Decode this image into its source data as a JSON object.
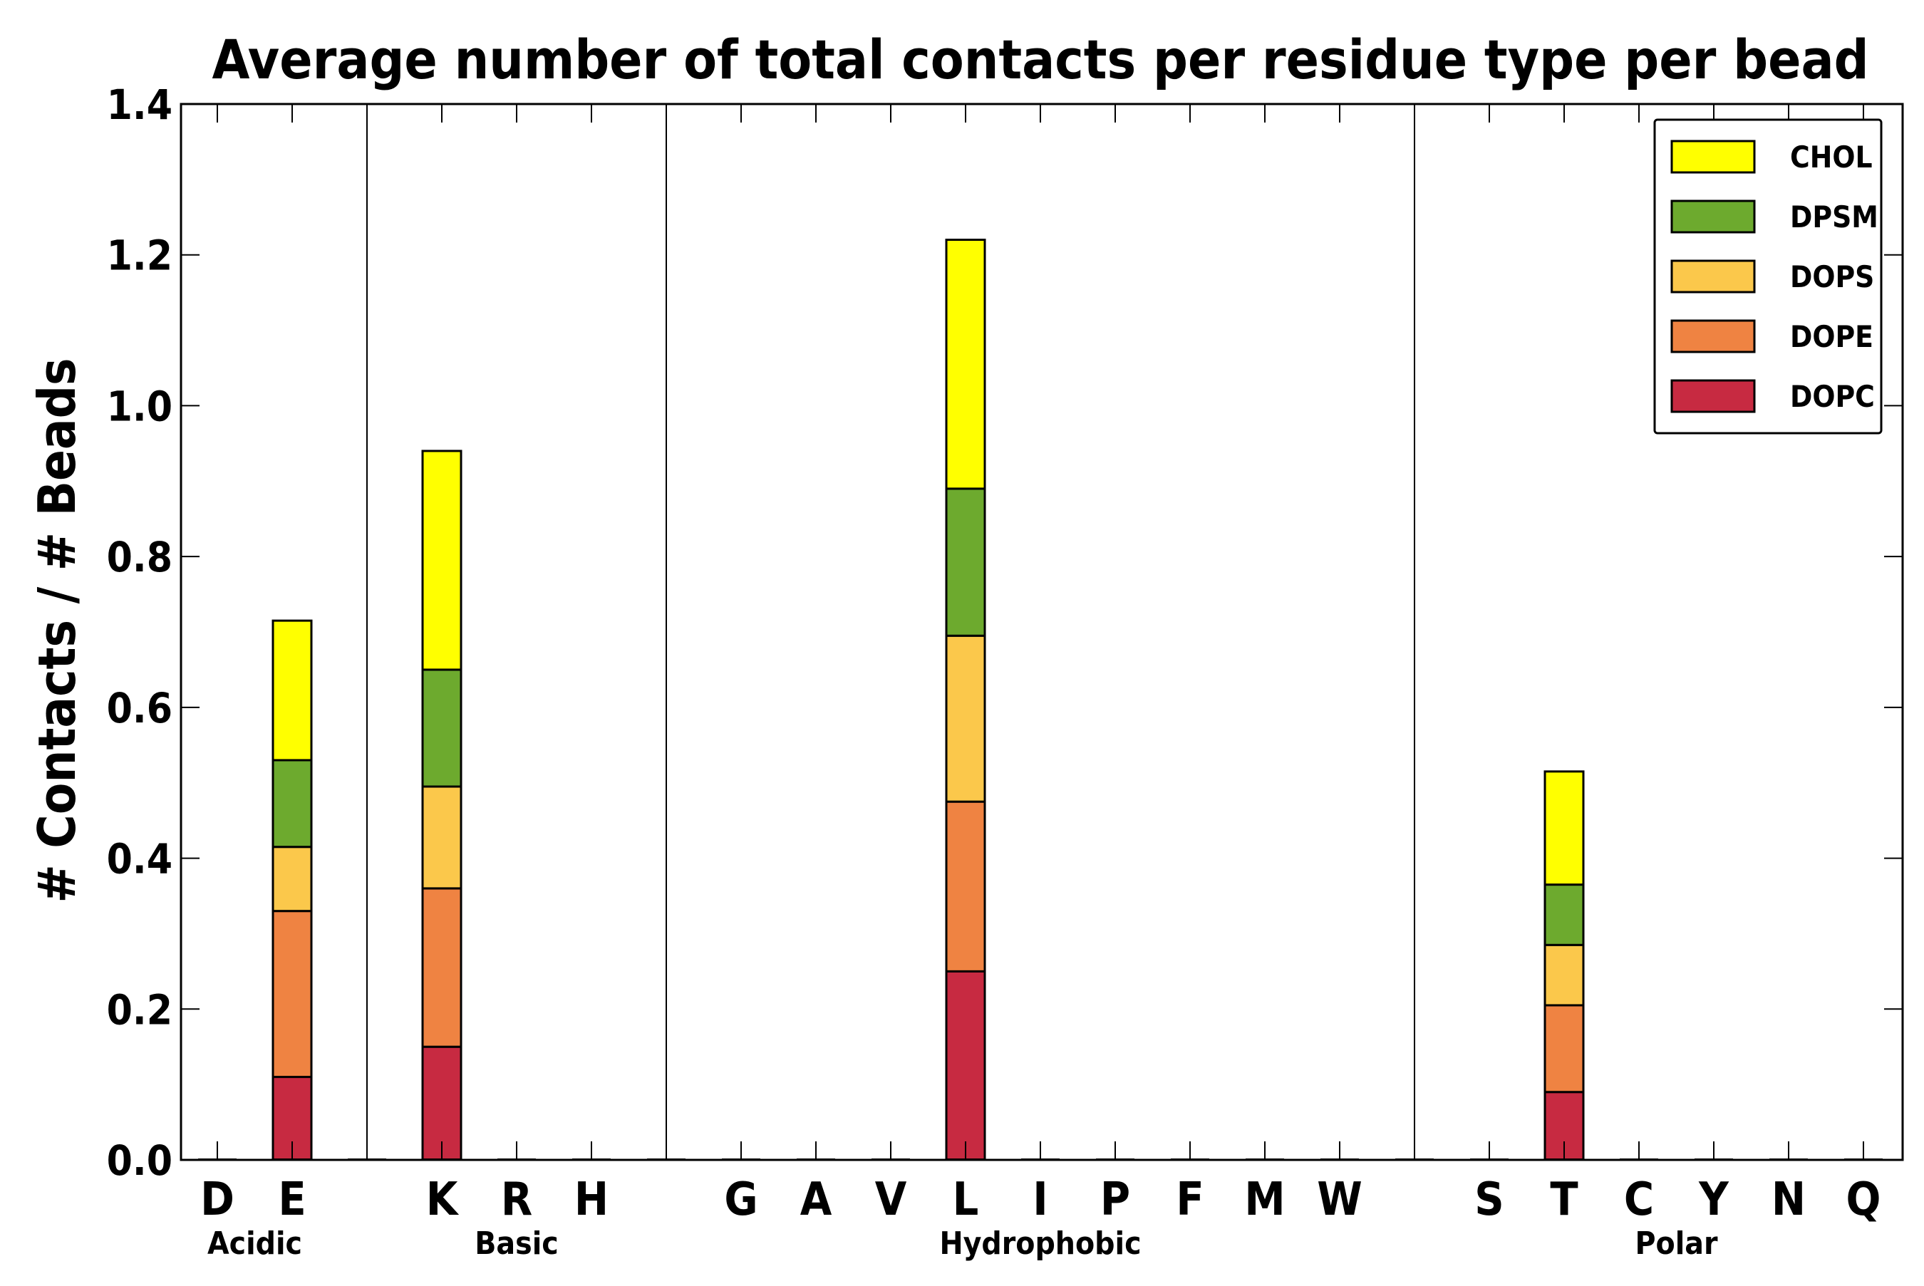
{
  "chart_data": {
    "type": "bar",
    "stacked": true,
    "title": "Average number of total contacts per residue type per bead",
    "xlabel": "",
    "ylabel": "# Contacts / # Beads",
    "ylim": [
      0.0,
      1.4
    ],
    "yticks": [
      "0.0",
      "0.2",
      "0.4",
      "0.6",
      "0.8",
      "1.0",
      "1.2",
      "1.4"
    ],
    "ytick_values": [
      0.0,
      0.2,
      0.4,
      0.6,
      0.8,
      1.0,
      1.2,
      1.4
    ],
    "grid": false,
    "legend_position": "top-right",
    "legend_order": [
      "CHOL",
      "DPSM",
      "DOPS",
      "DOPE",
      "DOPC"
    ],
    "categories": [
      "D",
      "E",
      "",
      "K",
      "R",
      "H",
      "",
      "G",
      "A",
      "V",
      "L",
      "I",
      "P",
      "F",
      "M",
      "W",
      "",
      "S",
      "T",
      "C",
      "Y",
      "N",
      "Q"
    ],
    "groups": [
      {
        "label": "Acidic",
        "members": [
          "D",
          "E"
        ]
      },
      {
        "label": "Basic",
        "members": [
          "K",
          "R",
          "H"
        ]
      },
      {
        "label": "Hydrophobic",
        "members": [
          "G",
          "A",
          "V",
          "L",
          "I",
          "P",
          "F",
          "M",
          "W"
        ]
      },
      {
        "label": "Polar",
        "members": [
          "S",
          "T",
          "C",
          "Y",
          "N",
          "Q"
        ]
      }
    ],
    "series": [
      {
        "name": "DOPC",
        "color": "#c72a41",
        "values": [
          0,
          0.11,
          0,
          0.15,
          0,
          0,
          0,
          0,
          0,
          0,
          0.25,
          0,
          0,
          0,
          0,
          0,
          0,
          0,
          0.09,
          0,
          0,
          0,
          0
        ]
      },
      {
        "name": "DOPE",
        "color": "#ef8342",
        "values": [
          0,
          0.22,
          0,
          0.21,
          0,
          0,
          0,
          0,
          0,
          0,
          0.225,
          0,
          0,
          0,
          0,
          0,
          0,
          0,
          0.115,
          0,
          0,
          0,
          0
        ]
      },
      {
        "name": "DOPS",
        "color": "#fbc84b",
        "values": [
          0,
          0.085,
          0,
          0.135,
          0,
          0,
          0,
          0,
          0,
          0,
          0.22,
          0,
          0,
          0,
          0,
          0,
          0,
          0,
          0.08,
          0,
          0,
          0,
          0
        ]
      },
      {
        "name": "DPSM",
        "color": "#6daa2e",
        "values": [
          0,
          0.115,
          0,
          0.155,
          0,
          0,
          0,
          0,
          0,
          0,
          0.195,
          0,
          0,
          0,
          0,
          0,
          0,
          0,
          0.08,
          0,
          0,
          0,
          0
        ]
      },
      {
        "name": "CHOL",
        "color": "#ffff00",
        "values": [
          0,
          0.185,
          0,
          0.29,
          0,
          0,
          0,
          0,
          0,
          0,
          0.33,
          0,
          0,
          0,
          0,
          0,
          0,
          0,
          0.15,
          0,
          0,
          0,
          0
        ]
      }
    ]
  }
}
